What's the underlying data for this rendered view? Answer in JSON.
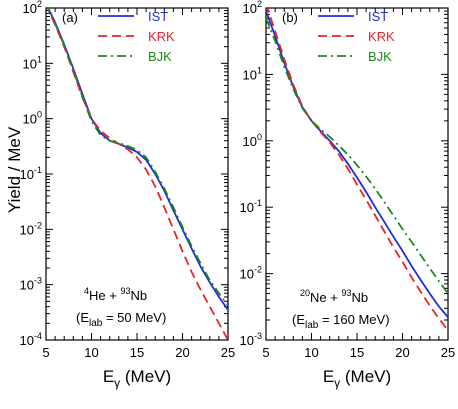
{
  "chart_data": [
    {
      "type": "line",
      "panel_label": "(a)",
      "reaction": {
        "p1_mass": "4",
        "p1": "He + ",
        "p2_mass": "93",
        "p2": "Nb"
      },
      "energy": {
        "pre": "(E",
        "sub": "lab",
        "post": " = 50 MeV)"
      },
      "xlabel": {
        "main": "E",
        "sub": "γ",
        "unit": " (MeV)"
      },
      "ylabel": "Yield / MeV",
      "xlim": [
        5,
        25
      ],
      "ylim_exp": [
        -4,
        2
      ],
      "y_scale": "log",
      "xticks": [
        "5",
        "10",
        "15",
        "20",
        "25"
      ],
      "yticks": [
        {
          "base": "10",
          "exp": "-4"
        },
        {
          "base": "10",
          "exp": "-3"
        },
        {
          "base": "10",
          "exp": "-2"
        },
        {
          "base": "10",
          "exp": "-1"
        },
        {
          "base": "10",
          "exp": "0"
        },
        {
          "base": "10",
          "exp": "1"
        },
        {
          "base": "10",
          "exp": "2"
        }
      ],
      "legend_position": "top-right",
      "series": [
        {
          "name": "IST",
          "color": "#1f2fd6",
          "dash": "",
          "x": [
            5,
            6,
            7,
            8,
            9,
            10,
            11,
            12,
            13,
            14,
            15,
            16,
            17,
            18,
            19,
            20,
            21,
            22,
            23,
            24,
            25
          ],
          "y": [
            120,
            55,
            22,
            8,
            2.8,
            1.0,
            0.55,
            0.4,
            0.35,
            0.3,
            0.25,
            0.18,
            0.1,
            0.05,
            0.022,
            0.01,
            0.0045,
            0.0021,
            0.0011,
            0.0006,
            0.00035
          ]
        },
        {
          "name": "KRK",
          "color": "#e8232a",
          "dash": "9,5",
          "x": [
            5,
            6,
            7,
            8,
            9,
            10,
            11,
            12,
            13,
            14,
            15,
            16,
            17,
            18,
            19,
            20,
            21,
            22,
            23,
            24,
            25
          ],
          "y": [
            115,
            50,
            20,
            7,
            2.4,
            1.0,
            0.6,
            0.45,
            0.35,
            0.28,
            0.2,
            0.12,
            0.06,
            0.025,
            0.01,
            0.004,
            0.0017,
            0.0008,
            0.0004,
            0.0002,
            0.0001
          ]
        },
        {
          "name": "BJK",
          "color": "#1a8a1a",
          "dash": "9,4,2,4",
          "x": [
            5,
            6,
            7,
            8,
            9,
            10,
            11,
            12,
            13,
            14,
            15,
            16,
            17,
            18,
            19,
            20,
            21,
            22,
            23,
            24,
            25
          ],
          "y": [
            118,
            52,
            21,
            7.5,
            2.5,
            0.9,
            0.5,
            0.4,
            0.36,
            0.32,
            0.27,
            0.2,
            0.11,
            0.055,
            0.025,
            0.011,
            0.005,
            0.0024,
            0.0012,
            0.0007,
            0.00042
          ]
        }
      ]
    },
    {
      "type": "line",
      "panel_label": "(b)",
      "reaction": {
        "p1_mass": "20",
        "p1": "Ne + ",
        "p2_mass": "93",
        "p2": "Nb"
      },
      "energy": {
        "pre": "(E",
        "sub": "lab",
        "post": " = 160 MeV)"
      },
      "xlabel": {
        "main": "E",
        "sub": "γ",
        "unit": " (MeV)"
      },
      "xlim": [
        5,
        25
      ],
      "ylim_exp": [
        -3,
        2
      ],
      "y_scale": "log",
      "xticks": [
        "5",
        "10",
        "15",
        "20",
        "25"
      ],
      "yticks": [
        {
          "base": "10",
          "exp": "-3"
        },
        {
          "base": "10",
          "exp": "-2"
        },
        {
          "base": "10",
          "exp": "-1"
        },
        {
          "base": "10",
          "exp": "0"
        },
        {
          "base": "10",
          "exp": "1"
        },
        {
          "base": "10",
          "exp": "2"
        }
      ],
      "legend_position": "top-right",
      "series": [
        {
          "name": "IST",
          "color": "#1f2fd6",
          "dash": "",
          "x": [
            5,
            6,
            7,
            8,
            9,
            10,
            11,
            12,
            13,
            14,
            15,
            16,
            17,
            18,
            19,
            20,
            21,
            22,
            23,
            24,
            25
          ],
          "y": [
            90,
            38,
            15,
            6.5,
            3.2,
            2.0,
            1.4,
            1.0,
            0.7,
            0.45,
            0.28,
            0.17,
            0.1,
            0.06,
            0.036,
            0.022,
            0.013,
            0.008,
            0.005,
            0.0032,
            0.0022
          ]
        },
        {
          "name": "KRK",
          "color": "#e8232a",
          "dash": "9,5",
          "x": [
            5,
            6,
            7,
            8,
            9,
            10,
            11,
            12,
            13,
            14,
            15,
            16,
            17,
            18,
            19,
            20,
            21,
            22,
            23,
            24,
            25
          ],
          "y": [
            115,
            45,
            17,
            7.0,
            3.3,
            2.0,
            1.35,
            0.95,
            0.62,
            0.38,
            0.22,
            0.13,
            0.075,
            0.043,
            0.025,
            0.015,
            0.0088,
            0.0053,
            0.0033,
            0.0021,
            0.0014
          ]
        },
        {
          "name": "BJK",
          "color": "#1a8a1a",
          "dash": "9,4,2,4",
          "x": [
            5,
            6,
            7,
            8,
            9,
            10,
            11,
            12,
            13,
            14,
            15,
            16,
            17,
            18,
            19,
            20,
            21,
            22,
            23,
            24,
            25
          ],
          "y": [
            70,
            32,
            13,
            6.0,
            3.1,
            2.0,
            1.5,
            1.15,
            0.85,
            0.62,
            0.43,
            0.29,
            0.19,
            0.12,
            0.075,
            0.047,
            0.03,
            0.019,
            0.012,
            0.0077,
            0.005
          ]
        }
      ]
    }
  ]
}
